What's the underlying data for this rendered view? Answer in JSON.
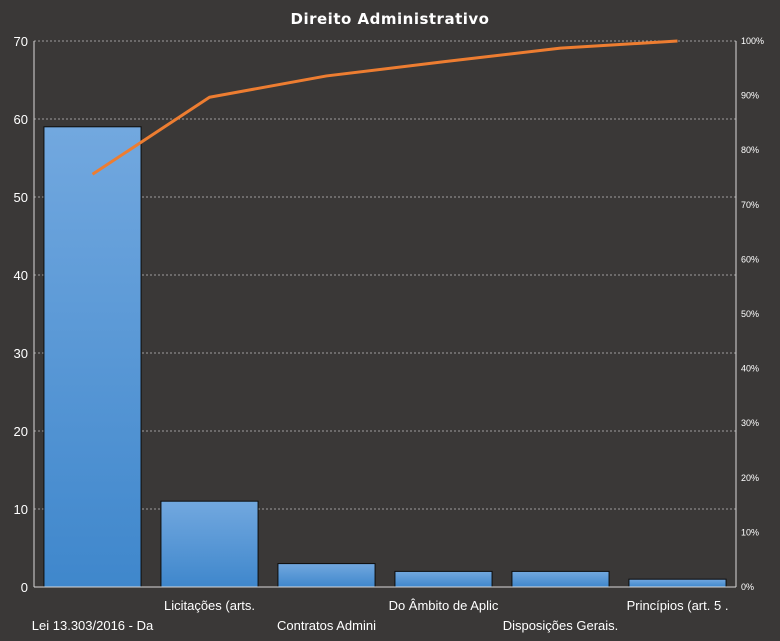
{
  "chart_data": {
    "type": "bar",
    "title": "Direito  Administrativo",
    "categories": [
      "Lei 13.303/2016 - Da",
      "Licitações (arts.",
      "Contratos Admini",
      "Do Âmbito de Aplic",
      "Disposições Gerais.",
      "Princípios (art. 5 ."
    ],
    "series": [
      {
        "values": [
          59,
          11,
          3,
          2,
          2,
          1
        ]
      }
    ],
    "cumulative_percent": {
      "values": [
        75.6,
        89.7,
        93.6,
        96.2,
        98.7,
        100
      ]
    },
    "ylim": [
      0,
      70
    ],
    "y_ticks": [
      "0",
      "10",
      "20",
      "30",
      "40",
      "50",
      "60",
      "70"
    ],
    "y2lim": [
      0,
      100
    ],
    "y2_ticks": [
      "0%",
      "10%",
      "20%",
      "30%",
      "40%",
      "50%",
      "60%",
      "70%",
      "80%",
      "90%",
      "100%"
    ],
    "grid": true,
    "colors": {
      "background": "#3a3837",
      "bar_top": "#72a8df",
      "bar_bottom": "#3f87cc",
      "bar_stroke": "#0d0d0d",
      "line": "#ed7d31",
      "grid": "#bfbfbf",
      "axis": "#d9d9d9",
      "text": "#ffffff"
    }
  }
}
